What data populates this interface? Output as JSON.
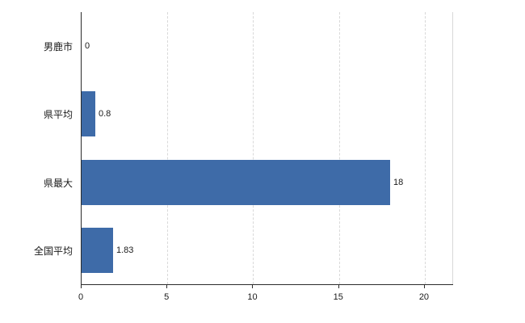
{
  "chart_data": {
    "type": "bar",
    "orientation": "horizontal",
    "title": "",
    "xlabel": "",
    "ylabel": "",
    "categories": [
      "男鹿市",
      "県平均",
      "県最大",
      "全国平均"
    ],
    "values": [
      0,
      0.8,
      18,
      1.83
    ],
    "value_labels": [
      "0",
      "0.8",
      "18",
      "1.83"
    ],
    "x_ticks": [
      0,
      5,
      10,
      15,
      20
    ],
    "xlim": [
      0,
      21.65
    ],
    "grid": true,
    "legend": false,
    "bar_color": "#3e6ba8",
    "gridline_color": "#d9d9d9",
    "axis_color": "#2b2b2b"
  }
}
